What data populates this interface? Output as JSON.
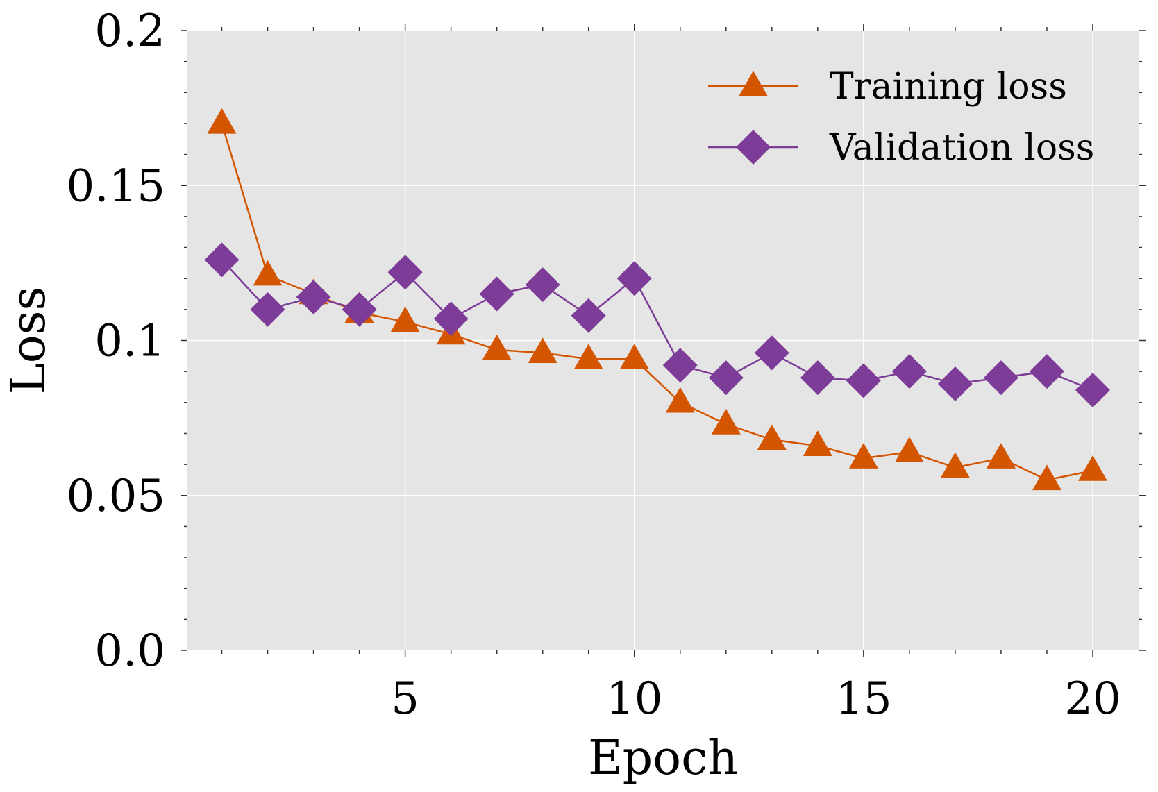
{
  "chart_data": {
    "type": "line",
    "title": "",
    "xlabel": "Epoch",
    "ylabel": "Loss",
    "xlim": [
      0.25,
      21
    ],
    "ylim": [
      0.0,
      0.2
    ],
    "xticks": [
      5,
      10,
      15,
      20
    ],
    "xtick_labels": [
      "5",
      "10",
      "15",
      "20"
    ],
    "yticks": [
      0.0,
      0.05,
      0.1,
      0.15,
      0.2
    ],
    "ytick_labels": [
      "0.0",
      "0.05",
      "0.1",
      "0.15",
      "0.2"
    ],
    "grid": true,
    "legend_position": "top-right",
    "background": "#e5e5e5",
    "x": [
      1,
      2,
      3,
      4,
      5,
      6,
      7,
      8,
      9,
      10,
      11,
      12,
      13,
      14,
      15,
      16,
      17,
      18,
      19,
      20
    ],
    "series": [
      {
        "name": "Training loss",
        "marker": "triangle",
        "color": "#d45500",
        "values": [
          0.17,
          0.121,
          0.115,
          0.109,
          0.106,
          0.102,
          0.097,
          0.096,
          0.094,
          0.094,
          0.08,
          0.073,
          0.068,
          0.066,
          0.062,
          0.064,
          0.059,
          0.062,
          0.055,
          0.058
        ]
      },
      {
        "name": "Validation loss",
        "marker": "diamond",
        "color": "#7d3c98",
        "values": [
          0.126,
          0.11,
          0.114,
          0.11,
          0.122,
          0.107,
          0.115,
          0.118,
          0.108,
          0.12,
          0.092,
          0.088,
          0.096,
          0.088,
          0.087,
          0.09,
          0.086,
          0.088,
          0.09,
          0.084
        ]
      }
    ]
  }
}
